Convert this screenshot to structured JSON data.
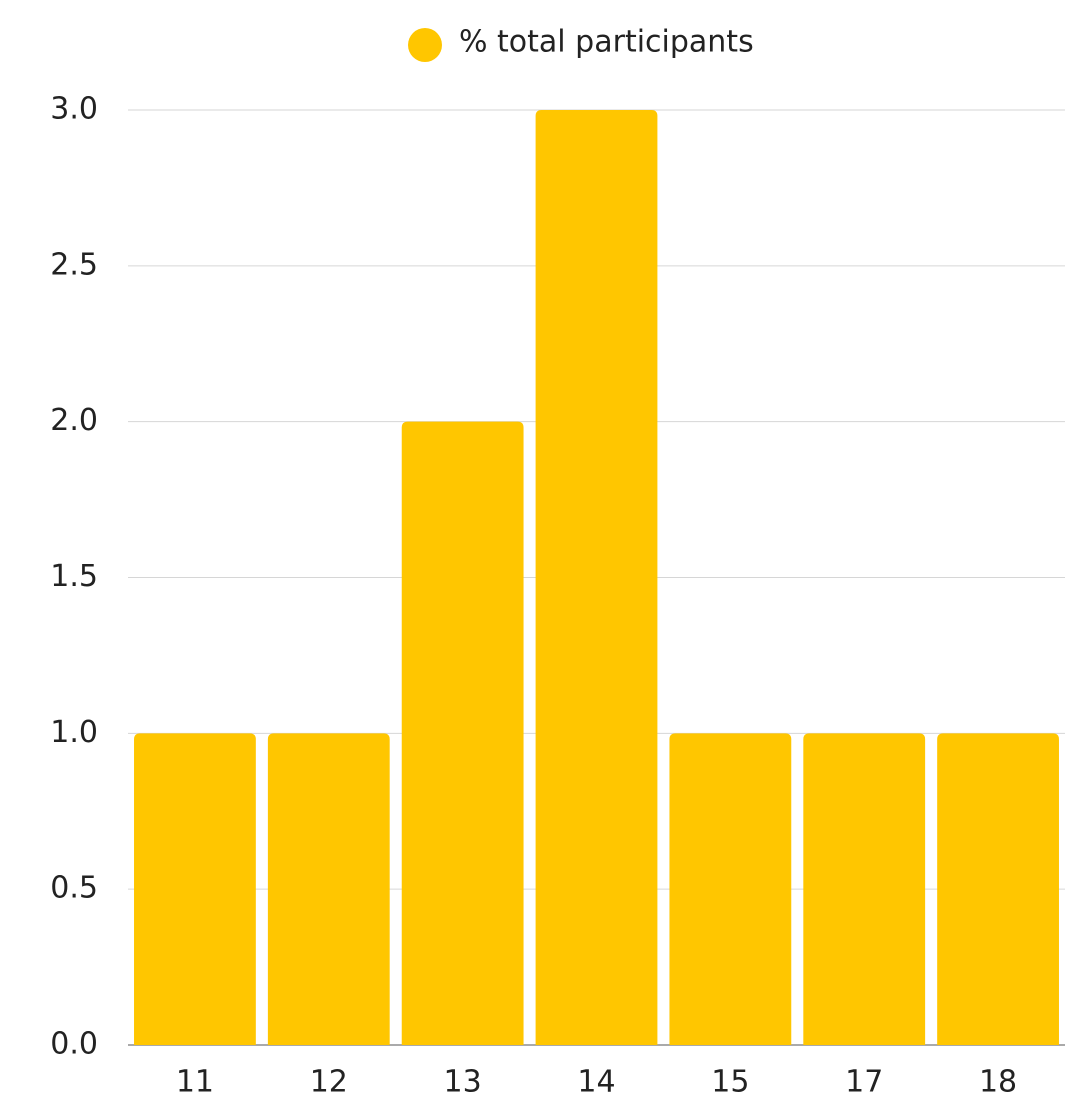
{
  "chart_data": {
    "type": "bar",
    "categories": [
      "11",
      "12",
      "13",
      "14",
      "15",
      "17",
      "18"
    ],
    "series": [
      {
        "name": "% total participants",
        "color": "#ffc600",
        "values": [
          1,
          1,
          2,
          3,
          1,
          1,
          1
        ]
      }
    ],
    "ylim": [
      0,
      3
    ],
    "yticks": [
      {
        "value": 0,
        "label": "0.0"
      },
      0.5,
      {
        "value": 1,
        "label": "1.0"
      },
      1.5,
      {
        "value": 2,
        "label": "2.0"
      },
      2.5,
      {
        "value": 3,
        "label": "3.0"
      }
    ],
    "grid": true,
    "legend": "top"
  }
}
